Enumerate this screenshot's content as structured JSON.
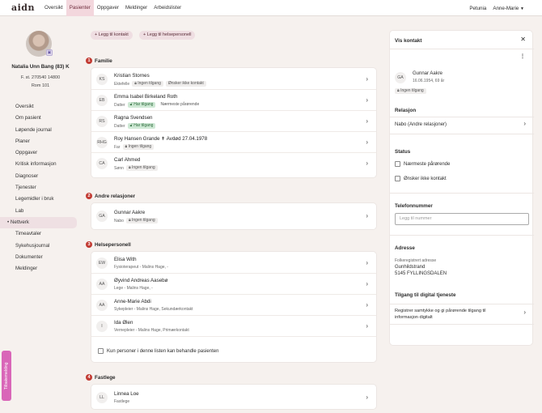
{
  "topbar": {
    "logo": "aidn",
    "nav": [
      "Oversikt",
      "Pasienter",
      "Oppgaver",
      "Meldinger",
      "Arbeidslister"
    ],
    "active_index": 1,
    "org": "Petunia",
    "user": "Anne-Marie"
  },
  "patient": {
    "name": "Natalia Unn Bang (83) K",
    "dob": "F. st. 270540 14800",
    "room": "Rom 101"
  },
  "leftnav": {
    "items": [
      "Oversikt",
      "Om pasient",
      "Løpende journal",
      "Planer",
      "Oppgaver",
      "Kritisk informasjon",
      "Diagnoser",
      "Tjenester",
      "Legemidler i bruk",
      "Lab",
      "Nettverk",
      "Timeavtaler",
      "Sykehusjournal",
      "Dokumenter",
      "Meldinger"
    ],
    "active_index": 10,
    "active_marker": "•"
  },
  "feedback_label": "Tilbakemelding",
  "actions": {
    "add_contact": "+ Legg til kontakt",
    "add_professional": "+ Legg til helsepersonell"
  },
  "sections": {
    "familie": {
      "num": "1",
      "title": "Familie",
      "rows": [
        {
          "initials": "KS",
          "name": "Kristian Stornes",
          "role": "Ektefelle",
          "tag": "Ingen tilgang",
          "extra": "Ønsker ikke kontakt"
        },
        {
          "initials": "EB",
          "name": "Emma Isabel Birkeland Roth",
          "role": "Datter",
          "tag": "Har tilgang",
          "extra": "Nærmeste pårørende"
        },
        {
          "initials": "RS",
          "name": "Ragna Svendsen",
          "role": "Datter",
          "tag": "Har tilgang",
          "extra": ""
        },
        {
          "initials": "RHG",
          "name": "Roy Hansen Grande",
          "name_extra": "Avdød 27.04.1978",
          "role": "Far",
          "tag": "Ingen tilgang",
          "extra": ""
        },
        {
          "initials": "CA",
          "name": "Carl Ahmed",
          "role": "Sønn",
          "tag": "Ingen tilgang",
          "extra": ""
        }
      ]
    },
    "andre": {
      "num": "2",
      "title": "Andre relasjoner",
      "rows": [
        {
          "initials": "GA",
          "name": "Gunnar Aakre",
          "role": "Nabo",
          "tag": "Ingen tilgang"
        }
      ]
    },
    "helse": {
      "num": "3",
      "title": "Helsepersonell",
      "rows": [
        {
          "initials": "EW",
          "name": "Elisa With",
          "sub": "Fysioterapeut - Malins Hage, -"
        },
        {
          "initials": "AA",
          "name": "Øyvind Andreas Aasebø",
          "sub": "Lege - Malins Hage, -"
        },
        {
          "initials": "AA",
          "name": "Anne-Marie Abdi",
          "sub": "Sykepleier - Malins Hage, Sekundærkontakt"
        },
        {
          "initials": "I",
          "name": "Ida Ølen",
          "sub": "Vernepleier - Malins Hage, Primærkontakt"
        }
      ],
      "checkbox_label": "Kun personer i denne listen kan behandle pasienten"
    },
    "fastlege": {
      "num": "4",
      "title": "Fastlege",
      "rows": [
        {
          "initials": "LL",
          "name": "Linnea Loe",
          "role": "Fastlege"
        }
      ]
    }
  },
  "contact_panel": {
    "title": "Vis kontakt",
    "close_icon": "✕",
    "menu_icon": "⋮",
    "initials": "GA",
    "name": "Gunnar Aakre",
    "dob": "16.06.1954, 69 år",
    "tag": "Ingen tilgang",
    "relation_heading": "Relasjon",
    "relation_value": "Nabo (Andre relasjoner)",
    "status_heading": "Status",
    "status_options": [
      "Nærmeste pårørende",
      "Ønsker ikke kontakt"
    ],
    "phone_heading": "Telefonnummer",
    "phone_placeholder": "Legg til nummer",
    "address_heading": "Adresse",
    "address_label": "Folkeregistrert adresse",
    "address_line1": "Gunhildstrand",
    "address_line2": "5145 FYLLINGSDALEN",
    "digital_heading": "Tilgang til digital tjeneste",
    "digital_text_line1": "Registrer samtykke og gi pårørende tilgang til",
    "digital_text_line2": "informasjon digitalt"
  }
}
